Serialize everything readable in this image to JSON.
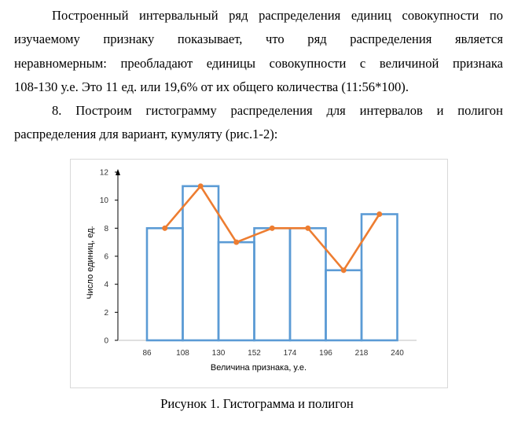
{
  "paragraphs": {
    "p1_lines": [
      "Построенный интервальный ряд распределения единиц совокупности по",
      "изучаемому признаку показывает, что ряд распределения является",
      "неравномерным: преобладают единицы совокупности с величиной признака",
      "108-130 у.е. Это 11 ед. или 19,6% от их общего количества (11:56*100)."
    ],
    "p2_lines": [
      "8. Построим гистограмму распределения для интервалов и полигон",
      "распределения для вариант, кумуляту (рис.1-2):"
    ]
  },
  "caption": "Рисунок 1. Гистограмма и полигон",
  "colors": {
    "bar_stroke": "#5b9bd5",
    "line": "#ed7d31",
    "axis": "#bfbfbf"
  },
  "chart_data": {
    "type": "bar",
    "x_ticks": [
      "86",
      "108",
      "130",
      "152",
      "174",
      "196",
      "218",
      "240"
    ],
    "bins": [
      {
        "from": 86,
        "to": 108,
        "value": 8
      },
      {
        "from": 108,
        "to": 130,
        "value": 11
      },
      {
        "from": 130,
        "to": 152,
        "value": 7
      },
      {
        "from": 152,
        "to": 174,
        "value": 8
      },
      {
        "from": 174,
        "to": 196,
        "value": 8
      },
      {
        "from": 196,
        "to": 218,
        "value": 5
      },
      {
        "from": 218,
        "to": 240,
        "value": 9
      }
    ],
    "polygon": {
      "x": [
        97,
        119,
        141,
        163,
        185,
        207,
        229
      ],
      "y": [
        8,
        11,
        7,
        8,
        8,
        5,
        9
      ]
    },
    "y_ticks": [
      "0",
      "2",
      "4",
      "6",
      "8",
      "10",
      "12"
    ],
    "ylim": [
      0,
      12
    ],
    "xlabel": "Величина признака, у.е.",
    "ylabel": "Число единиц, ед.",
    "grid": false,
    "legend": "none"
  }
}
